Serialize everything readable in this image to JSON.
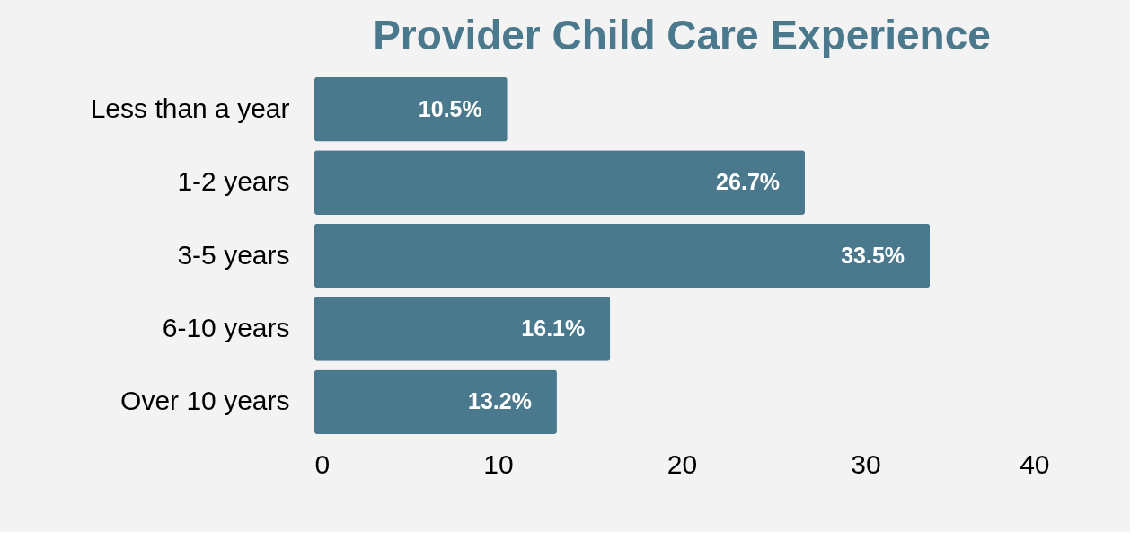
{
  "chart_data": {
    "type": "bar",
    "orientation": "horizontal",
    "title": "Provider Child Care Experience",
    "categories": [
      "Less than a year",
      "1-2 years",
      "3-5 years",
      "6-10 years",
      "Over 10 years"
    ],
    "series": [
      {
        "color": "#4a788c",
        "values": [
          10.5,
          26.7,
          33.5,
          16.1,
          13.2
        ]
      }
    ],
    "value_labels": [
      "10.5%",
      "26.7%",
      "33.5%",
      "16.1%",
      "13.2%"
    ],
    "xlim": [
      0,
      40
    ],
    "xticks": [
      0,
      10,
      20,
      30,
      40
    ],
    "grid": false
  }
}
